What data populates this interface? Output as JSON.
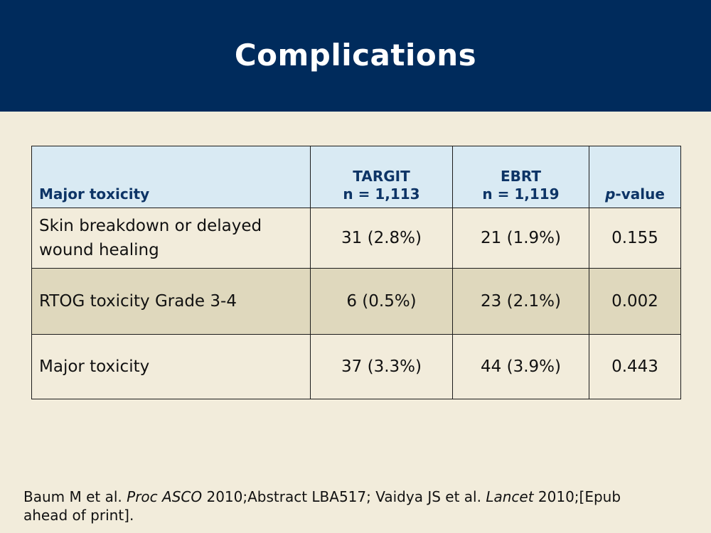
{
  "slide": {
    "title": "Complications"
  },
  "table": {
    "headers": {
      "col0": "Major toxicity",
      "col1_line1": "TARGIT",
      "col1_line2": "n = 1,113",
      "col2_line1": "EBRT",
      "col2_line2": "n = 1,119",
      "col3_italic": "p",
      "col3_rest": "-value"
    },
    "rows": [
      {
        "label": "Skin breakdown or delayed wound healing",
        "targit": "31 (2.8%)",
        "ebrt": "21 (1.9%)",
        "pvalue": "0.155"
      },
      {
        "label": "RTOG toxicity Grade 3-4",
        "targit": "6 (0.5%)",
        "ebrt": "23 (2.1%)",
        "pvalue": "0.002"
      },
      {
        "label": "Major toxicity",
        "targit": "37 (3.3%)",
        "ebrt": "44 (3.9%)",
        "pvalue": "0.443"
      }
    ]
  },
  "reference": {
    "part1": "Baum M et al. ",
    "part2_italic": "Proc ASCO",
    "part3": " 2010;Abstract LBA517; Vaidya JS et al. ",
    "part4_italic": "Lancet",
    "part5": " 2010;[Epub ahead of print]."
  },
  "colors": {
    "header_bg": "#002b5c",
    "slide_bg": "#f2ecdb",
    "table_header_bg": "#d9eaf3",
    "table_header_text": "#0d3466",
    "shaded_row_bg": "#dfd8bd"
  }
}
